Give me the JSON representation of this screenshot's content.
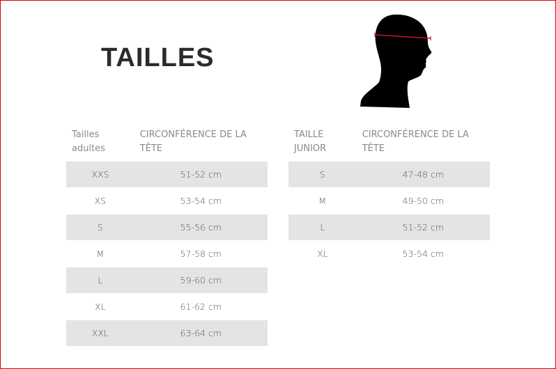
{
  "title": "TAILLES",
  "head_icon": "head-circumference-silhouette-icon",
  "accent_color": "#c8102e",
  "adult_table": {
    "headers": [
      "Tailles adultes",
      "CIRCONFÉRENCE DE LA TÊTE"
    ],
    "rows": [
      [
        "XXS",
        "51-52 cm"
      ],
      [
        "XS",
        "53-54 cm"
      ],
      [
        "S",
        "55-56 cm"
      ],
      [
        "M",
        "57-58 cm"
      ],
      [
        "L",
        "59-60 cm"
      ],
      [
        "XL",
        "61-62 cm"
      ],
      [
        "XXL",
        "63-64 cm"
      ]
    ]
  },
  "junior_table": {
    "headers": [
      "TAILLE JUNIOR",
      "CIRCONFÉRENCE DE LA TÊTE"
    ],
    "rows": [
      [
        "S",
        "47-48 cm"
      ],
      [
        "M",
        "49-50 cm"
      ],
      [
        "L",
        "51-52 cm"
      ],
      [
        "XL",
        "53-54 cm"
      ]
    ]
  }
}
